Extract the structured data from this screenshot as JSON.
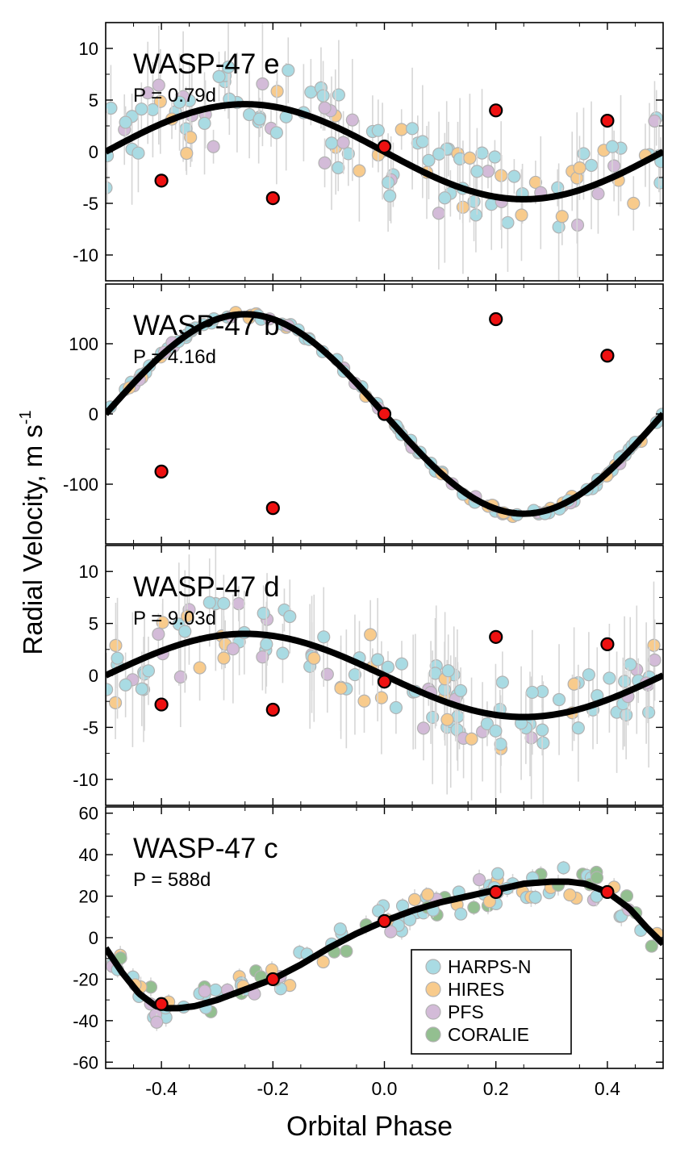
{
  "figure": {
    "ylabel": "Radial Velocity, m s",
    "ylabel_sup": "-1",
    "xlabel": "Orbital Phase"
  },
  "chart_data": [
    {
      "type": "scatter",
      "title": "WASP-47 e",
      "subtitle": "P = 0.79d",
      "xlim": [
        -0.5,
        0.5
      ],
      "ylim": [
        -12.5,
        12.5
      ],
      "yticks": [
        -10,
        -5,
        0,
        5,
        10
      ],
      "ytick_labels": [
        "-10",
        "-5",
        "0",
        "5",
        "10"
      ],
      "xticks": [
        -0.4,
        -0.2,
        0.0,
        0.2,
        0.4
      ],
      "model": {
        "kind": "sine",
        "amplitude": 4.6,
        "offset": 0
      },
      "key_points": [
        {
          "x": -0.4,
          "y": -2.8
        },
        {
          "x": -0.2,
          "y": -4.5
        },
        {
          "x": 0.0,
          "y": 0.5
        },
        {
          "x": 0.2,
          "y": 4.0
        },
        {
          "x": 0.4,
          "y": 3.0
        }
      ],
      "scatter_amplitude": 4.0,
      "err_amplitude": 5,
      "seed": 11
    },
    {
      "type": "scatter",
      "title": "WASP-47 b",
      "subtitle": "P = 4.16d",
      "xlim": [
        -0.5,
        0.5
      ],
      "ylim": [
        -185,
        185
      ],
      "yticks": [
        -100,
        0,
        100
      ],
      "ytick_labels": [
        "-100",
        "0",
        "100"
      ],
      "xticks": [
        -0.4,
        -0.2,
        0.0,
        0.2,
        0.4
      ],
      "model": {
        "kind": "sine",
        "amplitude": 142,
        "offset": 0
      },
      "key_points": [
        {
          "x": -0.4,
          "y": -82
        },
        {
          "x": -0.2,
          "y": -134
        },
        {
          "x": 0.0,
          "y": 0
        },
        {
          "x": 0.2,
          "y": 135
        },
        {
          "x": 0.4,
          "y": 83
        }
      ],
      "scatter_amplitude": 5,
      "err_amplitude": 3,
      "seed": 23
    },
    {
      "type": "scatter",
      "title": "WASP-47 d",
      "subtitle": "P = 9.03d",
      "xlim": [
        -0.5,
        0.5
      ],
      "ylim": [
        -12.5,
        12.5
      ],
      "yticks": [
        -10,
        -5,
        0,
        5,
        10
      ],
      "ytick_labels": [
        "-10",
        "-5",
        "0",
        "5",
        "10"
      ],
      "xticks": [
        -0.4,
        -0.2,
        0.0,
        0.2,
        0.4
      ],
      "model": {
        "kind": "sine",
        "amplitude": 4.0,
        "offset": 0
      },
      "key_points": [
        {
          "x": -0.4,
          "y": -2.8
        },
        {
          "x": -0.2,
          "y": -3.3
        },
        {
          "x": 0.0,
          "y": -0.6
        },
        {
          "x": 0.2,
          "y": 3.7
        },
        {
          "x": 0.4,
          "y": 3.0
        }
      ],
      "scatter_amplitude": 3.5,
      "err_amplitude": 5,
      "seed": 37
    },
    {
      "type": "scatter",
      "title": "WASP-47 c",
      "subtitle": "P = 588d",
      "xlim": [
        -0.5,
        0.5
      ],
      "ylim": [
        -63,
        63
      ],
      "yticks": [
        -60,
        -40,
        -20,
        0,
        20,
        40,
        60
      ],
      "ytick_labels": [
        "-60",
        "-40",
        "-20",
        "0",
        "20",
        "40",
        "60"
      ],
      "xticks": [
        -0.4,
        -0.2,
        -0.0,
        0.2,
        0.4
      ],
      "xtick_labels": [
        "-0.4",
        "-0.2",
        "0.0",
        "0.2",
        "0.4"
      ],
      "model": {
        "kind": "points",
        "x": [
          -0.5,
          -0.47,
          -0.44,
          -0.41,
          -0.39,
          -0.37,
          -0.34,
          -0.3,
          -0.25,
          -0.2,
          -0.15,
          -0.1,
          -0.05,
          0.0,
          0.05,
          0.1,
          0.15,
          0.2,
          0.25,
          0.3,
          0.33,
          0.36,
          0.4,
          0.44,
          0.47,
          0.5
        ],
        "y": [
          -5,
          -17,
          -27,
          -33,
          -34,
          -34,
          -33,
          -30,
          -25,
          -20,
          -13,
          -5,
          2,
          8,
          13,
          17,
          20,
          23,
          26,
          27,
          27,
          26,
          22,
          14,
          5,
          -3
        ]
      },
      "key_points": [
        {
          "x": -0.4,
          "y": -32
        },
        {
          "x": -0.2,
          "y": -20
        },
        {
          "x": 0.0,
          "y": 8
        },
        {
          "x": 0.2,
          "y": 22
        },
        {
          "x": 0.4,
          "y": 22
        }
      ],
      "scatter_amplitude": 8,
      "err_amplitude": 4,
      "seed": 53
    }
  ],
  "series": [
    {
      "name": "HARPS-N",
      "color": "#a9dbe3"
    },
    {
      "name": "HIRES",
      "color": "#f8cb8c"
    },
    {
      "name": "PFS",
      "color": "#d3bbd8"
    },
    {
      "name": "CORALIE",
      "color": "#93bf90"
    }
  ],
  "colors": {
    "model": "#000000",
    "highlight": "#ee1111",
    "error_bar": "#d6d6d6",
    "marker_edge": "#b2b2b2"
  }
}
